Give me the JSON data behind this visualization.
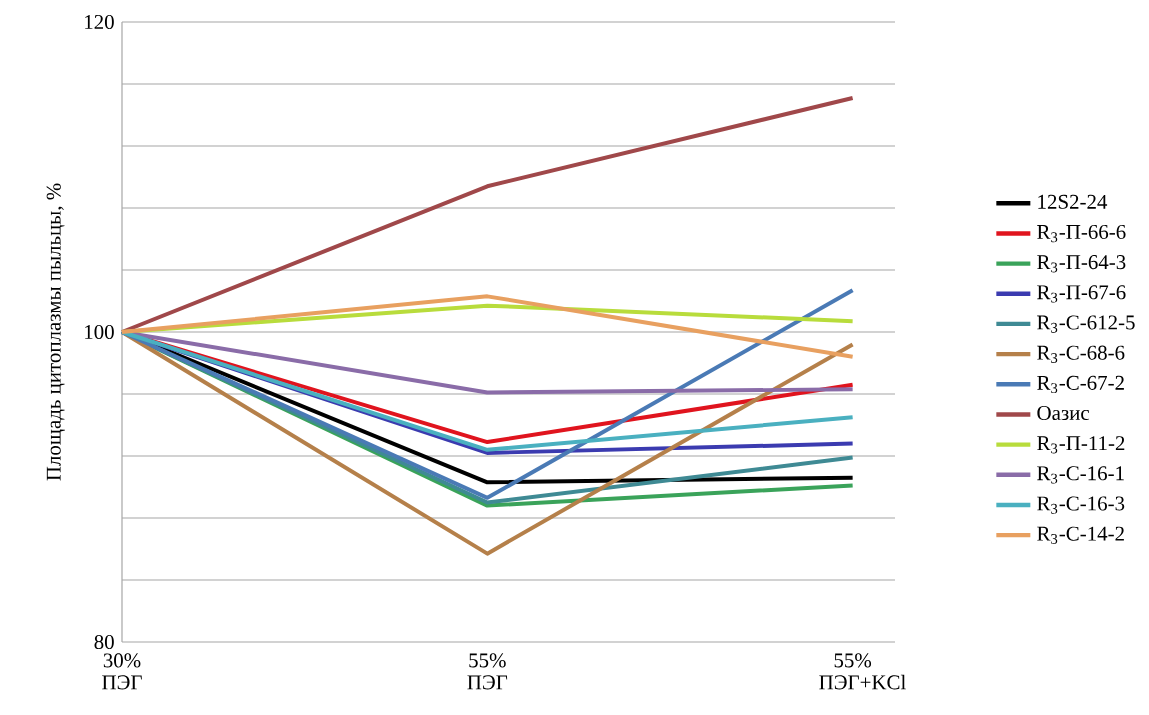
{
  "chart_data": {
    "type": "line",
    "ylabel": "Площадь цитоплазмы пыльцы, %",
    "categories": [
      "30% ПЭГ",
      "55% ПЭГ",
      "55% ПЭГ+KCl"
    ],
    "ylim": [
      80,
      120
    ],
    "yticks": [
      80,
      {
        "value": 84,
        "label": null
      },
      {
        "value": 88,
        "label": null
      },
      {
        "value": 92,
        "label": null
      },
      {
        "value": 96,
        "label": null
      },
      100,
      {
        "value": 104,
        "label": null
      },
      {
        "value": 108,
        "label": null
      },
      {
        "value": 112,
        "label": null
      },
      {
        "value": 116,
        "label": null
      },
      120
    ],
    "grid": "y",
    "legend": "right",
    "marker": "none",
    "line_style": "solid",
    "series": [
      {
        "name": "12S2-24",
        "color": "#000000",
        "values": [
          100,
          90.3,
          90.6
        ]
      },
      {
        "name": "R$_{3}$-П-66-6",
        "color": "#e0141e",
        "values": [
          100,
          92.9,
          96.6
        ]
      },
      {
        "name": "R$_{3}$-П-64-3",
        "color": "#3aa35a",
        "values": [
          100,
          88.8,
          90.1
        ]
      },
      {
        "name": "R$_{3}$-П-67-6",
        "color": "#3b3bb0",
        "values": [
          100,
          92.2,
          92.8
        ]
      },
      {
        "name": "R$_{3}$-С-612-5",
        "color": "#3f8a94",
        "values": [
          100,
          89.0,
          91.9
        ]
      },
      {
        "name": "R$_{3}$-С-68-6",
        "color": "#b5804a",
        "values": [
          100,
          85.7,
          99.2
        ]
      },
      {
        "name": "R$_{3}$-С-67-2",
        "color": "#4a7ab5",
        "values": [
          100,
          89.3,
          102.7
        ]
      },
      {
        "name": "Оазис",
        "color": "#a0484a",
        "values": [
          100,
          109.4,
          115.1
        ]
      },
      {
        "name": "R$_{3}$-П-11-2",
        "color": "#b8dc3c",
        "values": [
          100,
          101.7,
          100.7
        ]
      },
      {
        "name": "R$_{3}$-С-16-1",
        "color": "#8a6ca8",
        "values": [
          100,
          96.1,
          96.3
        ]
      },
      {
        "name": "R$_{3}$-С-16-3",
        "color": "#4ab0c0",
        "values": [
          100,
          92.4,
          94.5
        ]
      },
      {
        "name": "R$_{3}$-С-14-2",
        "color": "#e8a060",
        "values": [
          100,
          102.3,
          98.4
        ]
      }
    ]
  }
}
